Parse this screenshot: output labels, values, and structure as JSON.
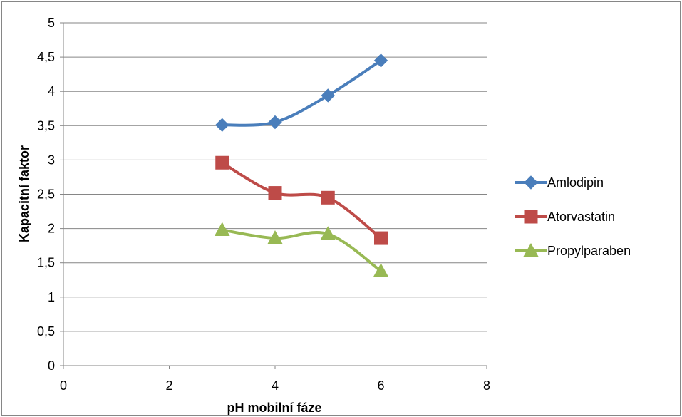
{
  "chart_data": {
    "type": "line",
    "xlabel": "pH mobilní fáze",
    "ylabel": "Kapacitní faktor",
    "xlim": [
      0,
      8
    ],
    "ylim": [
      0,
      5
    ],
    "x_ticks": [
      "0",
      "2",
      "4",
      "6",
      "8"
    ],
    "y_ticks": [
      "0",
      "0,5",
      "1",
      "1,5",
      "2",
      "2,5",
      "3",
      "3,5",
      "4",
      "4,5",
      "5"
    ],
    "grid": "horizontal",
    "legend_position": "right",
    "series": [
      {
        "name": "Amlodipin",
        "color": "#4A7EBB",
        "marker": "diamond",
        "x": [
          3,
          4,
          5,
          6
        ],
        "y": [
          3.51,
          3.55,
          3.94,
          4.45
        ]
      },
      {
        "name": "Atorvastatin",
        "color": "#BE4B48",
        "marker": "square",
        "x": [
          3,
          4,
          5,
          6
        ],
        "y": [
          2.96,
          2.52,
          2.45,
          1.86
        ]
      },
      {
        "name": "Propylparaben",
        "color": "#98B954",
        "marker": "triangle",
        "x": [
          3,
          4,
          5,
          6
        ],
        "y": [
          1.98,
          1.86,
          1.92,
          1.38
        ]
      }
    ]
  }
}
